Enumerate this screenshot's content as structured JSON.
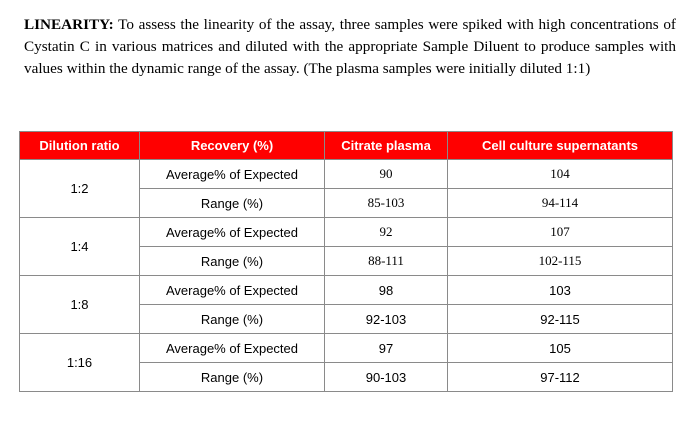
{
  "paragraph": {
    "heading": "LINEARITY:",
    "text": "To assess the linearity of the assay, three samples were spiked with high concentrations of Cystatin C in various matrices and diluted with the appropriate Sample Diluent to produce samples with values within the dynamic range of the assay. (The plasma samples were initially diluted 1:1)"
  },
  "table": {
    "headers": [
      "Dilution ratio",
      "Recovery (%)",
      "Citrate plasma",
      "Cell culture supernatants"
    ],
    "groups": [
      {
        "ratio": "1:2",
        "rows": [
          {
            "label": "Average% of Expected",
            "plasma": "90",
            "supernatants": "104"
          },
          {
            "label": "Range (%)",
            "plasma": "85-103",
            "supernatants": "94-114"
          }
        ]
      },
      {
        "ratio": "1:4",
        "rows": [
          {
            "label": "Average% of Expected",
            "plasma": "92",
            "supernatants": "107"
          },
          {
            "label": "Range (%)",
            "plasma": "88-111",
            "supernatants": "102-115"
          }
        ]
      },
      {
        "ratio": "1:8",
        "rows": [
          {
            "label": "Average% of Expected",
            "plasma": "98",
            "supernatants": "103"
          },
          {
            "label": "Range (%)",
            "plasma": "92-103",
            "supernatants": "92-115"
          }
        ]
      },
      {
        "ratio": "1:16",
        "rows": [
          {
            "label": "Average% of Expected",
            "plasma": "97",
            "supernatants": "105"
          },
          {
            "label": "Range (%)",
            "plasma": "90-103",
            "supernatants": "97-112"
          }
        ]
      }
    ]
  }
}
